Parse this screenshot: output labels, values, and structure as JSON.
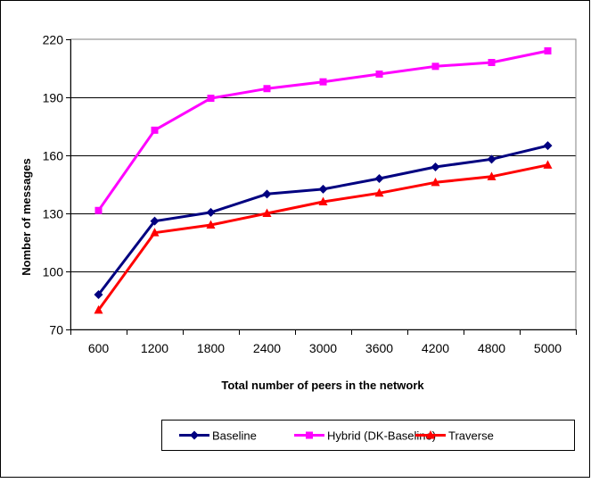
{
  "chart_data": {
    "type": "line",
    "title": "",
    "xlabel": "Total number of peers in the network",
    "ylabel": "Nomber of messages",
    "categories": [
      "600",
      "1200",
      "1800",
      "2400",
      "3000",
      "3600",
      "4200",
      "4800",
      "5000"
    ],
    "ylim": [
      70,
      220
    ],
    "yticks": [
      70,
      100,
      130,
      160,
      190,
      220
    ],
    "grid": "horizontal",
    "legend_position": "bottom",
    "series": [
      {
        "name": "Baseline",
        "values": [
          88,
          126,
          130.5,
          140,
          142.5,
          148,
          154,
          158,
          165
        ],
        "color": "#000080",
        "marker": "diamond"
      },
      {
        "name": "Hybrid (DK-Baseline)",
        "values": [
          131.5,
          173,
          189.5,
          194.5,
          198,
          202,
          206,
          208,
          214
        ],
        "color": "#ff00ff",
        "marker": "square"
      },
      {
        "name": "Traverse",
        "values": [
          80,
          120,
          124,
          130,
          136,
          140.5,
          146,
          149,
          155
        ],
        "color": "#ff0000",
        "marker": "triangle"
      }
    ]
  }
}
